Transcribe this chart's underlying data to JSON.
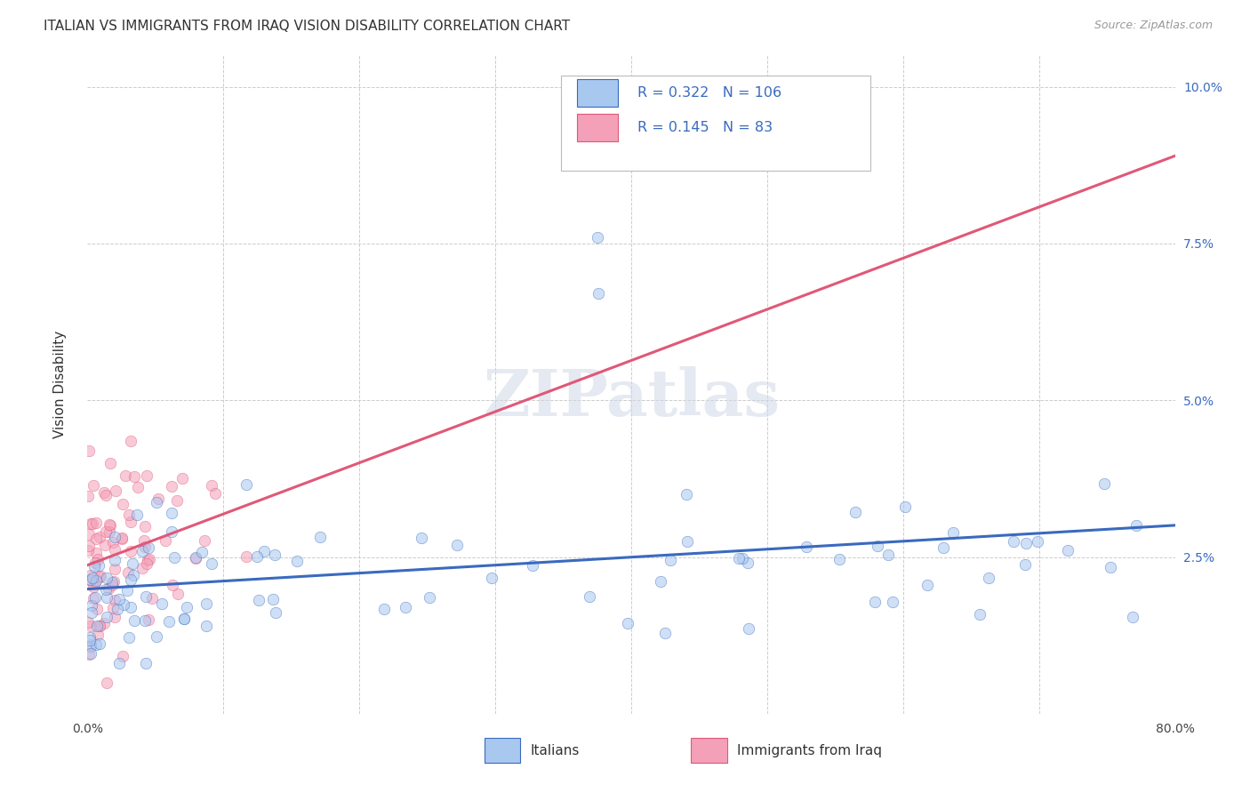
{
  "title": "ITALIAN VS IMMIGRANTS FROM IRAQ VISION DISABILITY CORRELATION CHART",
  "source": "Source: ZipAtlas.com",
  "ylabel": "Vision Disability",
  "xlim": [
    0.0,
    0.8
  ],
  "ylim": [
    0.0,
    0.105
  ],
  "legend_R1": "0.322",
  "legend_N1": "106",
  "legend_R2": "0.145",
  "legend_N2": "83",
  "color_italian": "#a8c8f0",
  "color_iraq": "#f4a0b8",
  "color_italian_line": "#3a6abf",
  "color_iraq_line": "#e05878",
  "background_color": "#ffffff",
  "grid_color": "#cccccc",
  "watermark_text": "ZIPatlas",
  "title_fontsize": 11,
  "axis_label_fontsize": 11,
  "tick_fontsize": 10,
  "marker_size": 9,
  "alpha_scatter": 0.55,
  "line_width": 2.2,
  "italian_seed": 17,
  "iraq_seed": 99
}
